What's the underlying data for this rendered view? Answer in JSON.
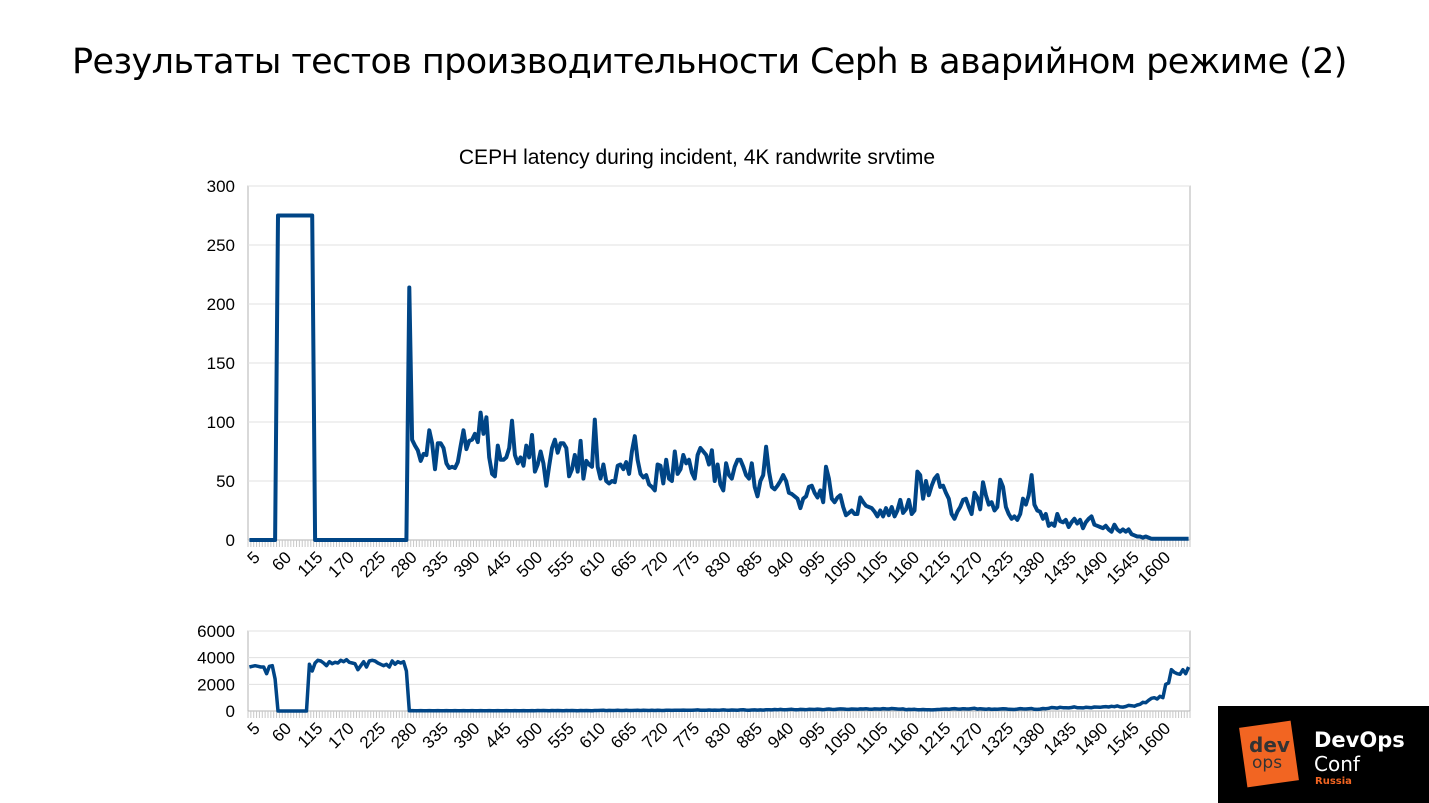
{
  "slide": {
    "title": "Результаты тестов производительности Ceph в аварийном режиме (2)"
  },
  "logo": {
    "line1": "dev",
    "line2": "ops",
    "brand1": "DevOps",
    "brand2": "Conf",
    "region": "Russia",
    "accent": "#f26522"
  },
  "chart_data": [
    {
      "type": "line",
      "title": "CEPH latency during incident, 4K randwrite srvtime",
      "xlabel": "",
      "ylabel": "",
      "x_start": 5,
      "x_step": 5,
      "ylim": [
        0,
        300
      ],
      "y_ticks": [
        "0",
        "50",
        "100",
        "150",
        "200",
        "250",
        "300"
      ],
      "x_tick_labels": [
        "5",
        "60",
        "115",
        "170",
        "225",
        "280",
        "335",
        "390",
        "445",
        "500",
        "555",
        "610",
        "665",
        "720",
        "775",
        "830",
        "885",
        "940",
        "995",
        "1050",
        "1105",
        "1160",
        "1215",
        "1270",
        "1325",
        "1380",
        "1435",
        "1490",
        "1545",
        "1600"
      ],
      "grid": true,
      "color": "#004586",
      "values": [
        0,
        0,
        0,
        0,
        0,
        0,
        0,
        0,
        0,
        0,
        275,
        275,
        275,
        275,
        275,
        275,
        275,
        275,
        275,
        275,
        275,
        275,
        275,
        0,
        0,
        0,
        0,
        0,
        0,
        0,
        0,
        0,
        0,
        0,
        0,
        0,
        0,
        0,
        0,
        0,
        0,
        0,
        0,
        0,
        0,
        0,
        0,
        0,
        0,
        0,
        0,
        0,
        0,
        0,
        0,
        0,
        214,
        85,
        80,
        76,
        67,
        73,
        72,
        93,
        82,
        60,
        82,
        82,
        78,
        65,
        61,
        62,
        61,
        66,
        80,
        93,
        77,
        84,
        85,
        90,
        83,
        108,
        90,
        104,
        70,
        56,
        54,
        80,
        68,
        68,
        70,
        78,
        101,
        72,
        65,
        70,
        63,
        80,
        70,
        89,
        58,
        64,
        75,
        65,
        46,
        63,
        78,
        85,
        74,
        82,
        82,
        78,
        54,
        60,
        72,
        58,
        84,
        52,
        67,
        64,
        62,
        102,
        62,
        52,
        64,
        50,
        48,
        50,
        49,
        63,
        64,
        60,
        66,
        56,
        75,
        88,
        68,
        56,
        53,
        55,
        47,
        45,
        42,
        64,
        63,
        48,
        68,
        52,
        50,
        75,
        56,
        60,
        72,
        65,
        68,
        57,
        52,
        72,
        78,
        75,
        72,
        64,
        76,
        50,
        64,
        47,
        42,
        65,
        55,
        52,
        62,
        68,
        68,
        62,
        55,
        52,
        65,
        45,
        37,
        50,
        55,
        79,
        58,
        45,
        43,
        46,
        50,
        55,
        50,
        40,
        39,
        37,
        35,
        27,
        35,
        37,
        45,
        46,
        40,
        36,
        42,
        32,
        62,
        52,
        35,
        32,
        36,
        38,
        28,
        21,
        23,
        25,
        22,
        22,
        36,
        32,
        29,
        28,
        27,
        24,
        20,
        25,
        20,
        27,
        21,
        28,
        20,
        25,
        34,
        23,
        26,
        34,
        22,
        25,
        58,
        55,
        35,
        50,
        38,
        46,
        52,
        55,
        45,
        46,
        40,
        35,
        22,
        18,
        24,
        28,
        34,
        35,
        28,
        22,
        40,
        36,
        26,
        49,
        38,
        30,
        32,
        25,
        28,
        51,
        45,
        28,
        22,
        18,
        20,
        17,
        22,
        35,
        30,
        38,
        55,
        30,
        25,
        24,
        18,
        22,
        12,
        14,
        12,
        22,
        16,
        15,
        17,
        11,
        15,
        18,
        14,
        17,
        10,
        15,
        18,
        20,
        13,
        12,
        11,
        10,
        12,
        9,
        7,
        13,
        9,
        7,
        9,
        7,
        9,
        5,
        4,
        3,
        3,
        2,
        3,
        2,
        1,
        1,
        1,
        1,
        1,
        1,
        1,
        1,
        1,
        1,
        1,
        1,
        1,
        1
      ]
    },
    {
      "type": "line",
      "title": "",
      "xlabel": "",
      "ylabel": "",
      "x_start": 5,
      "x_step": 5,
      "ylim": [
        0,
        6000
      ],
      "y_ticks": [
        "0",
        "2000",
        "4000",
        "6000"
      ],
      "x_tick_labels": [
        "5",
        "60",
        "115",
        "170",
        "225",
        "280",
        "335",
        "390",
        "445",
        "500",
        "555",
        "610",
        "665",
        "720",
        "775",
        "830",
        "885",
        "940",
        "995",
        "1050",
        "1105",
        "1160",
        "1215",
        "1270",
        "1325",
        "1380",
        "1435",
        "1490",
        "1545",
        "1600"
      ],
      "grid": true,
      "color": "#004586",
      "values": [
        3300,
        3350,
        3400,
        3350,
        3300,
        3300,
        2800,
        3350,
        3400,
        2400,
        0,
        0,
        0,
        0,
        0,
        0,
        0,
        0,
        0,
        0,
        0,
        3500,
        3000,
        3600,
        3800,
        3750,
        3600,
        3400,
        3700,
        3550,
        3650,
        3600,
        3800,
        3700,
        3850,
        3650,
        3600,
        3550,
        3100,
        3400,
        3700,
        3300,
        3750,
        3800,
        3750,
        3600,
        3500,
        3400,
        3500,
        3300,
        3750,
        3500,
        3700,
        3600,
        3700,
        3000,
        20,
        30,
        25,
        20,
        30,
        25,
        20,
        30,
        25,
        20,
        30,
        25,
        20,
        30,
        25,
        20,
        30,
        25,
        20,
        30,
        25,
        20,
        30,
        25,
        20,
        30,
        25,
        20,
        30,
        25,
        20,
        30,
        25,
        20,
        30,
        25,
        20,
        30,
        25,
        20,
        30,
        25,
        20,
        30,
        25,
        35,
        30,
        40,
        30,
        25,
        35,
        30,
        40,
        30,
        25,
        35,
        30,
        40,
        30,
        25,
        35,
        30,
        40,
        30,
        25,
        35,
        40,
        45,
        50,
        30,
        45,
        35,
        40,
        50,
        40,
        35,
        60,
        40,
        35,
        45,
        50,
        40,
        55,
        45,
        35,
        50,
        40,
        60,
        45,
        40,
        55,
        50,
        45,
        60,
        50,
        60,
        70,
        50,
        60,
        55,
        70,
        80,
        60,
        50,
        60,
        75,
        55,
        70,
        60,
        65,
        80,
        70,
        60,
        75,
        65,
        60,
        80,
        90,
        70,
        60,
        75,
        85,
        65,
        80,
        70,
        90,
        100,
        80,
        110,
        90,
        120,
        100,
        90,
        110,
        130,
        100,
        90,
        120,
        110,
        100,
        130,
        120,
        110,
        140,
        120,
        100,
        130,
        150,
        120,
        110,
        140,
        160,
        150,
        130,
        120,
        150,
        140,
        130,
        160,
        150,
        170,
        140,
        130,
        160,
        150,
        140,
        180,
        160,
        150,
        190,
        170,
        150,
        140,
        160,
        100,
        120,
        110,
        130,
        100,
        90,
        110,
        100,
        90,
        80,
        100,
        110,
        120,
        140,
        150,
        130,
        160,
        180,
        150,
        140,
        170,
        160,
        150,
        180,
        200,
        140,
        170,
        150,
        130,
        160,
        120,
        140,
        130,
        150,
        170,
        160,
        130,
        120,
        110,
        140,
        180,
        160,
        150,
        170,
        190,
        130,
        120,
        140,
        190,
        170,
        200,
        260,
        240,
        220,
        280,
        250,
        240,
        230,
        260,
        310,
        250,
        240,
        230,
        280,
        260,
        250,
        300,
        290,
        280,
        310,
        330,
        300,
        350,
        320,
        380,
        310,
        290,
        340,
        420,
        400,
        360,
        450,
        500,
        650,
        620,
        800,
        950,
        1000,
        900,
        1100,
        1000,
        2000,
        2100,
        3100,
        2900,
        2800,
        2750,
        3100,
        2800,
        3300
      ]
    }
  ]
}
